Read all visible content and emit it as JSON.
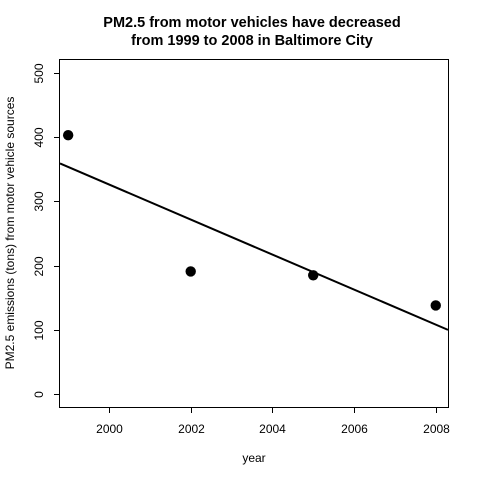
{
  "chart_data": {
    "type": "scatter",
    "title": "PM2.5 from motor vehicles have decreased",
    "subtitle": "from 1999 to 2008 in Baltimore City",
    "xlabel": "year",
    "ylabel": "PM2.5 emissions (tons) from motor vehicle sources",
    "xlim": [
      1998.8,
      2008.3
    ],
    "ylim": [
      -20,
      520
    ],
    "xticks": [
      2000,
      2002,
      2004,
      2006,
      2008
    ],
    "yticks": [
      0,
      100,
      200,
      300,
      400,
      500
    ],
    "grid": false,
    "legend": "none",
    "x": [
      1999,
      2002,
      2005,
      2008
    ],
    "y": [
      403,
      191,
      185,
      138
    ],
    "trend_line": {
      "type": "linear-fit",
      "start": [
        1998.8,
        359
      ],
      "end": [
        2008.3,
        100
      ]
    },
    "colors": {
      "points": "#000000",
      "line": "#000000",
      "frame": "#000000"
    }
  }
}
